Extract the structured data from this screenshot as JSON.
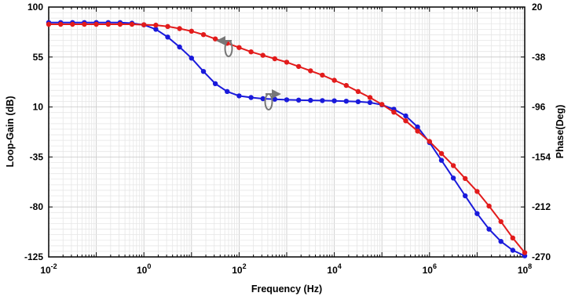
{
  "chart_data": {
    "type": "line",
    "xlabel": "Frequency (Hz)",
    "ylabel_left": "Loop-Gain (dB)",
    "ylabel_right": "Phase(Deg)",
    "x_scale": "log10",
    "xlim": [
      0.01,
      100000000
    ],
    "ylim_left": [
      -125,
      100
    ],
    "ylim_right": [
      -270,
      20
    ],
    "x_ticks": [
      {
        "base": "10",
        "exp": "-2",
        "value": 0.01
      },
      {
        "base": "10",
        "exp": "0",
        "value": 1
      },
      {
        "base": "10",
        "exp": "2",
        "value": 100
      },
      {
        "base": "10",
        "exp": "4",
        "value": 10000
      },
      {
        "base": "10",
        "exp": "6",
        "value": 1000000
      },
      {
        "base": "10",
        "exp": "8",
        "value": 100000000
      }
    ],
    "y_ticks_left": [
      "100",
      "55",
      "10",
      "-35",
      "-80",
      "-125"
    ],
    "y_ticks_right": [
      "20",
      "-38",
      "-96",
      "-154",
      "-212",
      "-270"
    ],
    "grid": true,
    "series": [
      {
        "axis": "left",
        "color": "#1a1adb",
        "points": [
          [
            0.01,
            86
          ],
          [
            0.0178,
            86
          ],
          [
            0.0316,
            86
          ],
          [
            0.0562,
            86
          ],
          [
            0.1,
            86
          ],
          [
            0.178,
            86
          ],
          [
            0.316,
            86
          ],
          [
            0.562,
            85.5
          ],
          [
            1.0,
            84
          ],
          [
            1.78,
            80
          ],
          [
            3.16,
            73
          ],
          [
            5.62,
            64
          ],
          [
            10.0,
            54
          ],
          [
            17.8,
            42
          ],
          [
            31.6,
            31
          ],
          [
            56.2,
            24
          ],
          [
            100,
            20
          ],
          [
            178,
            18.5
          ],
          [
            316,
            17.5
          ],
          [
            562,
            17
          ],
          [
            1000,
            16.5
          ],
          [
            1780,
            16.2
          ],
          [
            3160,
            16
          ],
          [
            5620,
            15.8
          ],
          [
            10000,
            15.6
          ],
          [
            17800,
            15.2
          ],
          [
            31600,
            14.8
          ],
          [
            56200,
            14
          ],
          [
            100000,
            12
          ],
          [
            178000,
            8
          ],
          [
            316000,
            2
          ],
          [
            562000,
            -8
          ],
          [
            1000000,
            -22
          ],
          [
            1780000,
            -38
          ],
          [
            3160000,
            -54
          ],
          [
            5620000,
            -70
          ],
          [
            10000000,
            -86
          ],
          [
            17800000,
            -100
          ],
          [
            31600000,
            -111
          ],
          [
            56200000,
            -119
          ],
          [
            100000000,
            -124
          ]
        ]
      },
      {
        "axis": "right",
        "color": "#e21b1b",
        "points": [
          [
            0.01,
            0
          ],
          [
            0.0178,
            0
          ],
          [
            0.0316,
            0
          ],
          [
            0.0562,
            0
          ],
          [
            0.1,
            0
          ],
          [
            0.178,
            0
          ],
          [
            0.316,
            0
          ],
          [
            0.562,
            0
          ],
          [
            1.0,
            -0.5
          ],
          [
            1.78,
            -1
          ],
          [
            3.16,
            -2.5
          ],
          [
            5.62,
            -5
          ],
          [
            10.0,
            -8
          ],
          [
            17.8,
            -12
          ],
          [
            31.6,
            -17
          ],
          [
            56.2,
            -22
          ],
          [
            100,
            -27
          ],
          [
            178,
            -32
          ],
          [
            316,
            -36
          ],
          [
            562,
            -40
          ],
          [
            1000,
            -44
          ],
          [
            1780,
            -49
          ],
          [
            3160,
            -54
          ],
          [
            5620,
            -59
          ],
          [
            10000,
            -65
          ],
          [
            17800,
            -71
          ],
          [
            31600,
            -78
          ],
          [
            56200,
            -85
          ],
          [
            100000,
            -93
          ],
          [
            178000,
            -102
          ],
          [
            316000,
            -112
          ],
          [
            562000,
            -124
          ],
          [
            1000000,
            -136
          ],
          [
            1780000,
            -150
          ],
          [
            3160000,
            -164
          ],
          [
            5620000,
            -179
          ],
          [
            10000000,
            -194
          ],
          [
            17800000,
            -211
          ],
          [
            31600000,
            -229
          ],
          [
            56200000,
            -248
          ],
          [
            100000000,
            -265
          ]
        ]
      }
    ]
  }
}
